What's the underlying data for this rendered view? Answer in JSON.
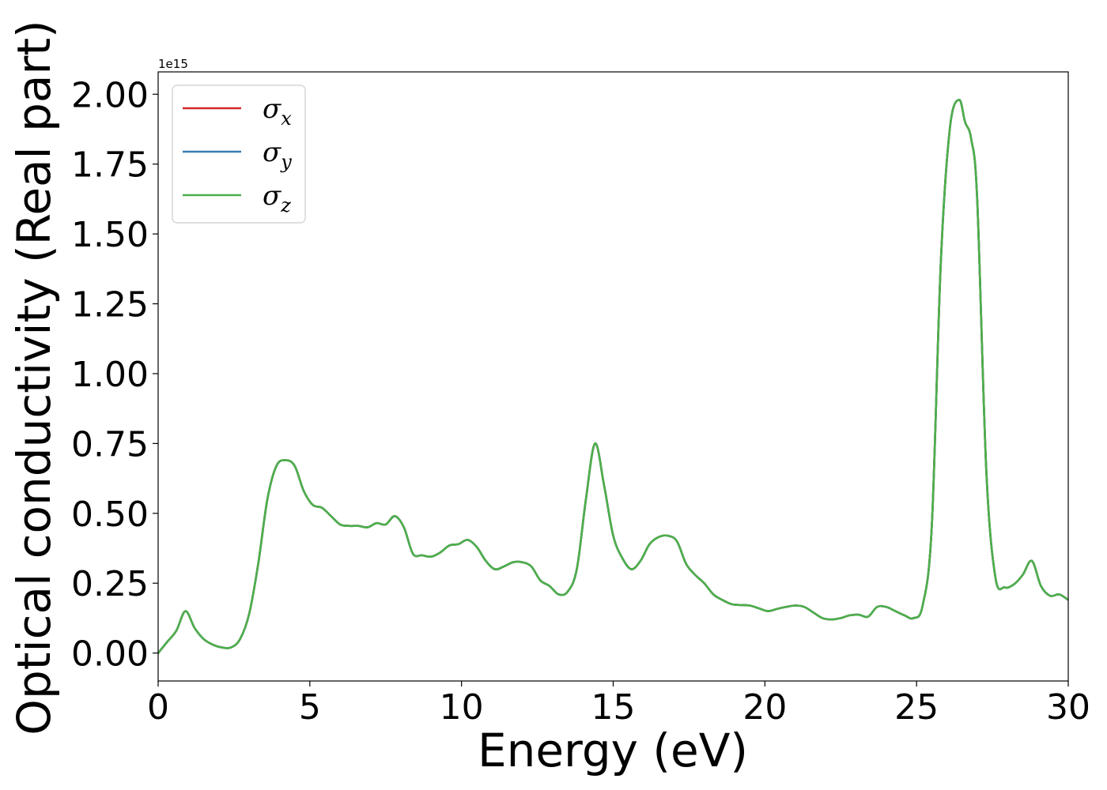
{
  "chart_data": {
    "type": "line",
    "title": "",
    "xlabel": "Energy (eV)",
    "ylabel": "Optical conductivity (Real part)",
    "y_offset_label": "1e15",
    "xlim": [
      0,
      30
    ],
    "ylim": [
      -0.1,
      2.08
    ],
    "xticks": [
      0,
      5,
      10,
      15,
      20,
      25,
      30
    ],
    "xtick_labels": [
      "0",
      "5",
      "10",
      "15",
      "20",
      "25",
      "30"
    ],
    "yticks": [
      0.0,
      0.25,
      0.5,
      0.75,
      1.0,
      1.25,
      1.5,
      1.75,
      2.0
    ],
    "ytick_labels": [
      "0.00",
      "0.25",
      "0.50",
      "0.75",
      "1.00",
      "1.25",
      "1.50",
      "1.75",
      "2.00"
    ],
    "grid": false,
    "legend_position": "top-left",
    "x": [
      0,
      0.3,
      0.6,
      0.9,
      1.2,
      1.5,
      1.8,
      2.1,
      2.4,
      2.7,
      3.0,
      3.3,
      3.6,
      3.9,
      4.2,
      4.5,
      4.8,
      5.1,
      5.4,
      5.7,
      6.0,
      6.3,
      6.6,
      6.9,
      7.2,
      7.5,
      7.8,
      8.1,
      8.4,
      8.7,
      9.0,
      9.3,
      9.6,
      9.9,
      10.2,
      10.5,
      10.8,
      11.1,
      11.4,
      11.7,
      12.0,
      12.3,
      12.6,
      12.9,
      13.2,
      13.5,
      13.8,
      14.1,
      14.4,
      14.7,
      15.0,
      15.3,
      15.6,
      15.9,
      16.2,
      16.5,
      16.8,
      17.1,
      17.4,
      17.7,
      18.0,
      18.3,
      18.6,
      18.9,
      19.2,
      19.5,
      19.8,
      20.1,
      20.4,
      20.7,
      21.0,
      21.3,
      21.6,
      21.9,
      22.2,
      22.5,
      22.8,
      23.1,
      23.4,
      23.7,
      24.0,
      24.3,
      24.6,
      24.9,
      25.2,
      25.5,
      25.8,
      26.1,
      26.4,
      26.6,
      26.8,
      27.0,
      27.3,
      27.6,
      27.9,
      28.2,
      28.5,
      28.8,
      29.1,
      29.4,
      29.7,
      30.0
    ],
    "series": [
      {
        "name": "σx",
        "color": "#d62728",
        "values": [
          0.0,
          0.04,
          0.08,
          0.15,
          0.09,
          0.05,
          0.03,
          0.02,
          0.02,
          0.05,
          0.14,
          0.32,
          0.55,
          0.67,
          0.69,
          0.67,
          0.58,
          0.53,
          0.52,
          0.49,
          0.46,
          0.455,
          0.455,
          0.45,
          0.465,
          0.46,
          0.49,
          0.45,
          0.355,
          0.35,
          0.345,
          0.36,
          0.385,
          0.39,
          0.405,
          0.38,
          0.33,
          0.3,
          0.31,
          0.325,
          0.325,
          0.31,
          0.26,
          0.24,
          0.21,
          0.22,
          0.3,
          0.55,
          0.75,
          0.6,
          0.42,
          0.34,
          0.3,
          0.33,
          0.39,
          0.415,
          0.42,
          0.4,
          0.32,
          0.28,
          0.25,
          0.21,
          0.19,
          0.175,
          0.172,
          0.17,
          0.16,
          0.15,
          0.158,
          0.165,
          0.17,
          0.165,
          0.145,
          0.125,
          0.12,
          0.125,
          0.135,
          0.137,
          0.13,
          0.165,
          0.165,
          0.15,
          0.135,
          0.125,
          0.17,
          0.45,
          1.4,
          1.88,
          1.98,
          1.9,
          1.84,
          1.62,
          0.65,
          0.27,
          0.235,
          0.245,
          0.28,
          0.33,
          0.24,
          0.205,
          0.21,
          0.19
        ]
      },
      {
        "name": "σy",
        "color": "#377eb8",
        "values": [
          0.0,
          0.04,
          0.08,
          0.15,
          0.09,
          0.05,
          0.03,
          0.02,
          0.02,
          0.05,
          0.14,
          0.32,
          0.55,
          0.67,
          0.69,
          0.67,
          0.58,
          0.53,
          0.52,
          0.49,
          0.46,
          0.455,
          0.455,
          0.45,
          0.465,
          0.46,
          0.49,
          0.45,
          0.355,
          0.35,
          0.345,
          0.36,
          0.385,
          0.39,
          0.405,
          0.38,
          0.33,
          0.3,
          0.31,
          0.325,
          0.325,
          0.31,
          0.26,
          0.24,
          0.21,
          0.22,
          0.3,
          0.55,
          0.75,
          0.6,
          0.42,
          0.34,
          0.3,
          0.33,
          0.39,
          0.415,
          0.42,
          0.4,
          0.32,
          0.28,
          0.25,
          0.21,
          0.19,
          0.175,
          0.172,
          0.17,
          0.16,
          0.15,
          0.158,
          0.165,
          0.17,
          0.165,
          0.145,
          0.125,
          0.12,
          0.125,
          0.135,
          0.137,
          0.13,
          0.165,
          0.165,
          0.15,
          0.135,
          0.125,
          0.17,
          0.45,
          1.4,
          1.88,
          1.98,
          1.9,
          1.84,
          1.62,
          0.65,
          0.27,
          0.235,
          0.245,
          0.28,
          0.33,
          0.24,
          0.205,
          0.21,
          0.19
        ]
      },
      {
        "name": "σz",
        "color": "#4daf4a",
        "values": [
          0.0,
          0.04,
          0.08,
          0.15,
          0.09,
          0.05,
          0.03,
          0.02,
          0.02,
          0.05,
          0.14,
          0.32,
          0.55,
          0.67,
          0.69,
          0.67,
          0.58,
          0.53,
          0.52,
          0.49,
          0.46,
          0.455,
          0.455,
          0.45,
          0.465,
          0.46,
          0.49,
          0.45,
          0.355,
          0.35,
          0.345,
          0.36,
          0.385,
          0.39,
          0.405,
          0.38,
          0.33,
          0.3,
          0.31,
          0.325,
          0.325,
          0.31,
          0.26,
          0.24,
          0.21,
          0.22,
          0.3,
          0.55,
          0.75,
          0.6,
          0.42,
          0.34,
          0.3,
          0.33,
          0.39,
          0.415,
          0.42,
          0.4,
          0.32,
          0.28,
          0.25,
          0.21,
          0.19,
          0.175,
          0.172,
          0.17,
          0.16,
          0.15,
          0.158,
          0.165,
          0.17,
          0.165,
          0.145,
          0.125,
          0.12,
          0.125,
          0.135,
          0.137,
          0.13,
          0.165,
          0.165,
          0.15,
          0.135,
          0.125,
          0.17,
          0.45,
          1.4,
          1.88,
          1.98,
          1.9,
          1.84,
          1.62,
          0.65,
          0.27,
          0.235,
          0.245,
          0.28,
          0.33,
          0.24,
          0.205,
          0.21,
          0.19
        ]
      }
    ],
    "legend": [
      {
        "symbol": "σ",
        "sub": "x"
      },
      {
        "symbol": "σ",
        "sub": "y"
      },
      {
        "symbol": "σ",
        "sub": "z"
      }
    ]
  }
}
